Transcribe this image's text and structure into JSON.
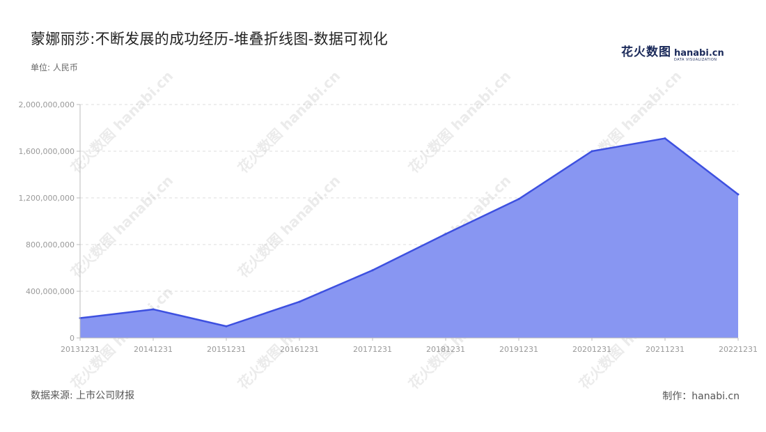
{
  "header": {
    "title": "蒙娜丽莎:不断发展的成功经历-堆叠折线图-数据可视化",
    "unit": "单位: 人民币"
  },
  "logo": {
    "cn": "花火数图",
    "en": "hanabi.cn",
    "sub": "DATA VISUALIZATION",
    "watermark": "花火数图 hanabi.cn"
  },
  "footer": {
    "source": "数据来源: 上市公司财报",
    "credit": "制作：hanabi.cn"
  },
  "colors": {
    "area_fill": "#8896f2",
    "line": "#3d50e0",
    "grid": "#dddddd",
    "axis": "#bbbbbb"
  },
  "chart_data": {
    "type": "area",
    "x": [
      "20131231",
      "20141231",
      "20151231",
      "20161231",
      "20171231",
      "20181231",
      "20191231",
      "20201231",
      "20211231",
      "20221231"
    ],
    "series": [
      {
        "values": [
          170000000,
          245000000,
          100000000,
          310000000,
          580000000,
          890000000,
          1190000000,
          1600000000,
          1710000000,
          1230000000
        ]
      }
    ],
    "ylim": [
      0,
      2000000000
    ],
    "yticks": [
      "0",
      "400,000,000",
      "800,000,000",
      "1,200,000,000",
      "1,600,000,000",
      "2,000,000,000"
    ],
    "ytick_values": [
      0,
      400000000,
      800000000,
      1200000000,
      1600000000,
      2000000000
    ],
    "grid": true,
    "legend": "none"
  }
}
